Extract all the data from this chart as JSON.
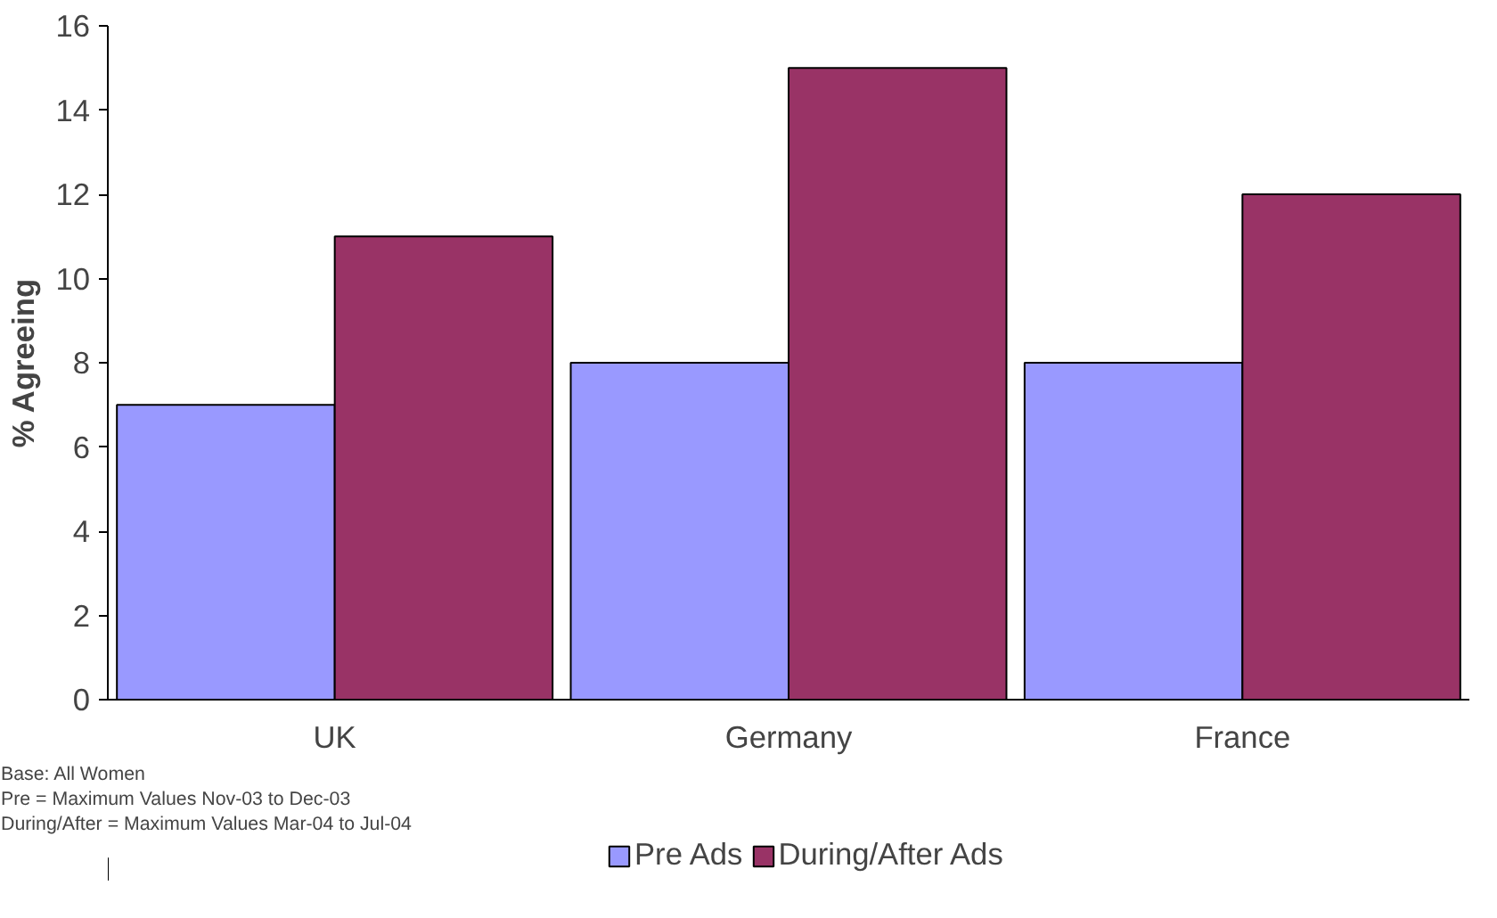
{
  "chart_data": {
    "type": "bar",
    "ylabel": "% Agreeing",
    "categories": [
      "UK",
      "Germany",
      "France"
    ],
    "series": [
      {
        "name": "Pre Ads",
        "color": "#9999ff",
        "values": [
          7,
          8,
          8
        ]
      },
      {
        "name": "During/After Ads",
        "color": "#993366",
        "values": [
          11,
          15,
          12
        ]
      }
    ],
    "ylim": [
      0,
      16
    ],
    "yticks": [
      0,
      2,
      4,
      6,
      8,
      10,
      12,
      14,
      16
    ],
    "grid": false,
    "legend": "bottom",
    "annotations": [
      "Base: All Women",
      "Pre  = Maximum Values Nov-03 to Dec-03",
      "During/After = Maximum Values Mar-04 to Jul-04"
    ]
  }
}
